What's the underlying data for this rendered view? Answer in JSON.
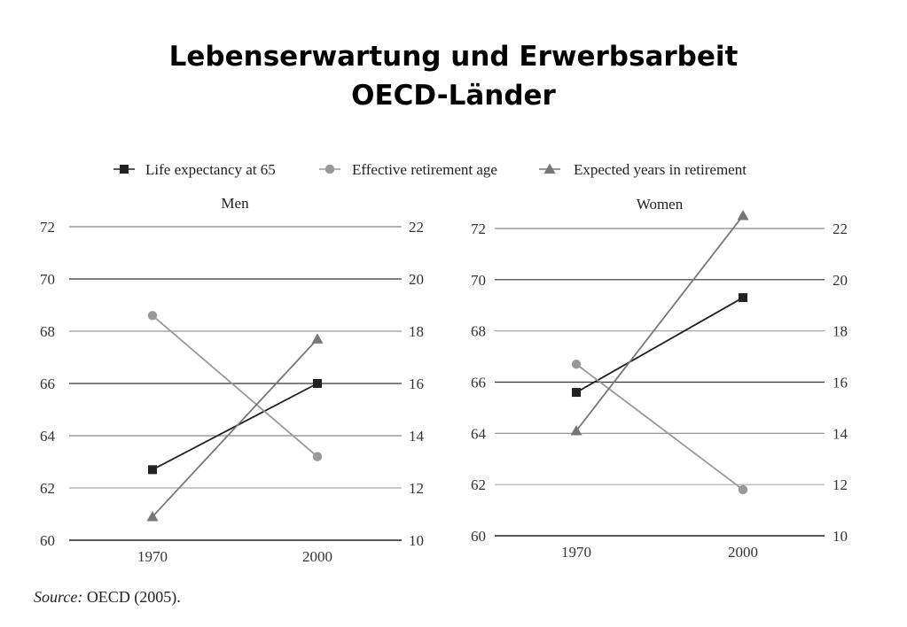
{
  "title": {
    "line1": "Lebenserwartung und Erwerbsarbeit",
    "line2": "OECD-Länder"
  },
  "legend": {
    "items": [
      {
        "label": "Life expectancy at 65",
        "marker": "square",
        "color": "#222222"
      },
      {
        "label": "Effective retirement age",
        "marker": "circle",
        "color": "#999999"
      },
      {
        "label": "Expected years in retirement",
        "marker": "triangle",
        "color": "#777777"
      }
    ]
  },
  "source": {
    "label": "Source:",
    "text": "OECD (2005)."
  },
  "chart_data": [
    {
      "type": "line",
      "title": "Men",
      "categories": [
        "1970",
        "2000"
      ],
      "left_axis": {
        "ylim": [
          60,
          72
        ],
        "ticks": [
          60,
          62,
          64,
          66,
          68,
          70,
          72
        ]
      },
      "right_axis": {
        "ylim": [
          10,
          22
        ],
        "ticks": [
          10,
          12,
          14,
          16,
          18,
          20,
          22
        ]
      },
      "series": [
        {
          "name": "Life expectancy at 65",
          "axis": "left",
          "marker": "square",
          "color": "#222222",
          "values": [
            62.7,
            66.0
          ]
        },
        {
          "name": "Effective retirement age",
          "axis": "left",
          "marker": "circle",
          "color": "#999999",
          "values": [
            68.6,
            63.2
          ]
        },
        {
          "name": "Expected years in retirement",
          "axis": "right",
          "marker": "triangle",
          "color": "#777777",
          "values": [
            10.9,
            17.7
          ]
        }
      ]
    },
    {
      "type": "line",
      "title": "Women",
      "categories": [
        "1970",
        "2000"
      ],
      "left_axis": {
        "ylim": [
          60,
          72
        ],
        "ticks": [
          60,
          62,
          64,
          66,
          68,
          70,
          72
        ]
      },
      "right_axis": {
        "ylim": [
          10,
          22
        ],
        "ticks": [
          10,
          12,
          14,
          16,
          18,
          20,
          22
        ]
      },
      "series": [
        {
          "name": "Life expectancy at 65",
          "axis": "left",
          "marker": "square",
          "color": "#222222",
          "values": [
            65.6,
            69.3
          ]
        },
        {
          "name": "Effective retirement age",
          "axis": "left",
          "marker": "circle",
          "color": "#999999",
          "values": [
            66.7,
            61.8
          ]
        },
        {
          "name": "Expected years in retirement",
          "axis": "right",
          "marker": "triangle",
          "color": "#777777",
          "values": [
            14.1,
            22.5
          ]
        }
      ]
    }
  ]
}
